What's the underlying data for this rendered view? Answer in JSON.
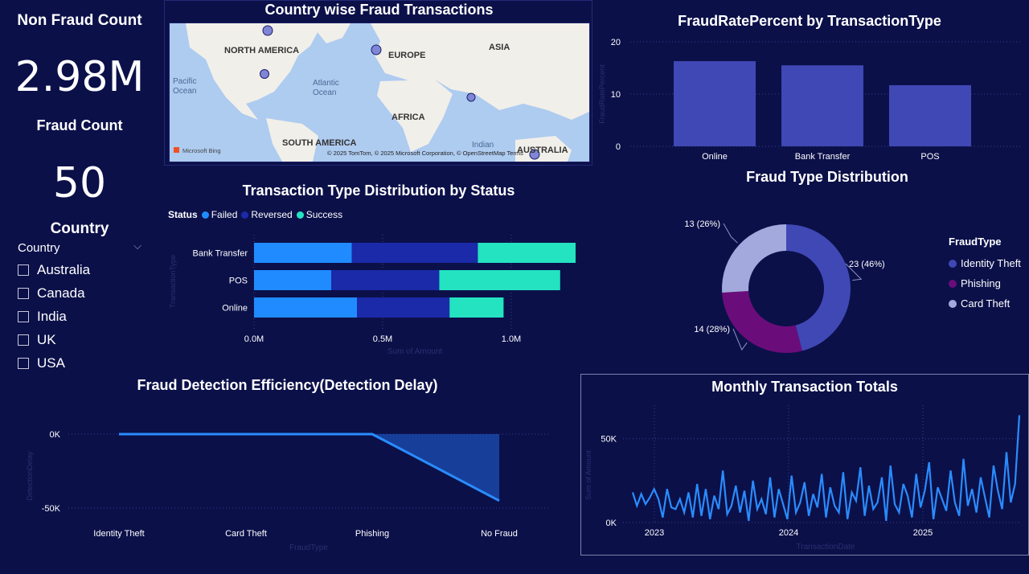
{
  "kpis": {
    "non_fraud": {
      "label": "Non Fraud Count",
      "value": "2.98M"
    },
    "fraud": {
      "label": "Fraud Count",
      "value": "50"
    }
  },
  "country_slicer": {
    "title": "Country",
    "header": "Country",
    "options": [
      "Australia",
      "Canada",
      "India",
      "UK",
      "USA"
    ]
  },
  "map": {
    "title": "Country wise Fraud Transactions",
    "labels": {
      "north_america": "NORTH AMERICA",
      "europe": "EUROPE",
      "asia": "ASIA",
      "africa": "AFRICA",
      "south_america": "SOUTH AMERICA",
      "australia": "AUSTRALIA",
      "pacific": "Pacific\nOcean",
      "atlantic": "Atlantic\nOcean",
      "indian": "Indian"
    },
    "attribution": "© 2025 TomTom, © 2025 Microsoft Corporation, © OpenStreetMap  Terms",
    "brand": "Microsoft Bing",
    "points": [
      "Canada",
      "UK",
      "USA",
      "India",
      "Australia"
    ]
  },
  "colors": {
    "background": "#0b1049",
    "bar_blue": "#3f48b4",
    "failed": "#1f8bff",
    "reversed": "#1b2aa8",
    "success": "#23e3c0",
    "identity_theft": "#3f48b4",
    "phishing": "#6a0d7a",
    "card_theft": "#a3a9dc",
    "line": "#2a8cff"
  },
  "chart_data": [
    {
      "id": "fraud_rate",
      "type": "bar",
      "title": "FraudRatePercent by TransactionType",
      "categories": [
        "Online",
        "Bank Transfer",
        "POS"
      ],
      "values": [
        16.3,
        15.5,
        11.7
      ],
      "xlabel": "",
      "ylabel": "FraudRatePercent",
      "ylim": [
        0,
        20
      ],
      "yticks": [
        "0",
        "10",
        "20"
      ]
    },
    {
      "id": "type_by_status",
      "type": "bar",
      "orientation": "horizontal",
      "title": "Transaction Type Distribution by Status",
      "legend_title": "Status",
      "categories": [
        "Bank Transfer",
        "POS",
        "Online"
      ],
      "series": [
        {
          "name": "Failed",
          "values": [
            0.38,
            0.3,
            0.4
          ]
        },
        {
          "name": "Reversed",
          "values": [
            0.49,
            0.42,
            0.36
          ]
        },
        {
          "name": "Success",
          "values": [
            0.38,
            0.47,
            0.21
          ]
        }
      ],
      "xlabel": "Sum of Amount",
      "ylabel": "TransactionType",
      "xlim": [
        0,
        1.25
      ],
      "xticks": [
        "0.0M",
        "0.5M",
        "1.0M"
      ]
    },
    {
      "id": "fraud_type",
      "type": "pie",
      "title": "Fraud Type Distribution",
      "legend_title": "FraudType",
      "slices": [
        {
          "name": "Identity Theft",
          "value": 23,
          "label": "23 (46%)"
        },
        {
          "name": "Phishing",
          "value": 14,
          "label": "14 (28%)"
        },
        {
          "name": "Card Theft",
          "value": 13,
          "label": "13 (26%)"
        }
      ]
    },
    {
      "id": "detection_delay",
      "type": "area",
      "title": "Fraud Detection Efficiency(Detection Delay)",
      "categories": [
        "Identity Theft",
        "Card Theft",
        "Phishing",
        "No Fraud"
      ],
      "values": [
        0,
        0,
        0,
        -45000
      ],
      "xlabel": "FraudType",
      "ylabel": "DetectionDelay",
      "ylim": [
        -50000,
        0
      ],
      "yticks": [
        "0K",
        "-50K"
      ]
    },
    {
      "id": "monthly_totals",
      "type": "line",
      "title": "Monthly Transaction Totals",
      "xlabel": "TransactionDate",
      "ylabel": "Sum of Amount",
      "ylim": [
        0,
        70000
      ],
      "yticks": [
        "0K",
        "50K"
      ],
      "xticks": [
        "2023",
        "2024",
        "2025"
      ],
      "values": [
        18000,
        10000,
        17000,
        11000,
        15000,
        20000,
        14000,
        3000,
        20000,
        9000,
        8000,
        14000,
        6000,
        18000,
        3000,
        23000,
        4000,
        20000,
        2000,
        16000,
        8000,
        31000,
        5000,
        10000,
        22000,
        6000,
        19000,
        1000,
        25000,
        8000,
        14000,
        5000,
        27000,
        3000,
        20000,
        11000,
        2000,
        28000,
        6000,
        12000,
        24000,
        4000,
        17000,
        9000,
        29000,
        3000,
        21000,
        10000,
        6000,
        30000,
        2000,
        18000,
        13000,
        33000,
        4000,
        22000,
        8000,
        12000,
        27000,
        1000,
        34000,
        11000,
        6000,
        23000,
        16000,
        3000,
        29000,
        9000,
        19000,
        36000,
        2000,
        21000,
        14000,
        7000,
        31000,
        12000,
        4000,
        38000,
        10000,
        20000,
        6000,
        27000,
        15000,
        3000,
        34000,
        19000,
        8000,
        42000,
        12000,
        23000,
        64000
      ]
    }
  ]
}
